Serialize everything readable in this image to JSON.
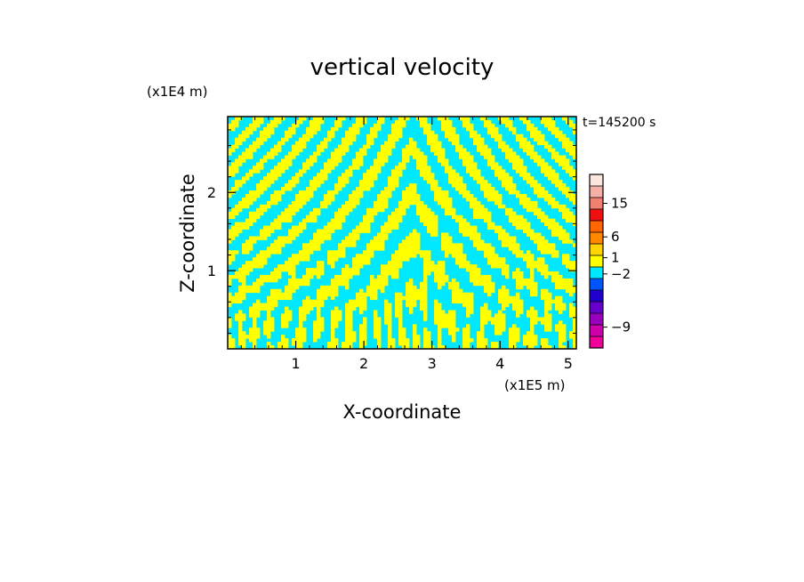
{
  "chart_data": {
    "type": "heatmap",
    "title": "vertical velocity",
    "xlabel": "X-coordinate",
    "ylabel": "Z-coordinate",
    "x_unit": "(x1E5 m)",
    "y_unit": "(x1E4 m)",
    "time_label": "t=145200 s",
    "x_ticks": [
      1,
      2,
      3,
      4,
      5
    ],
    "y_ticks": [
      1,
      2
    ],
    "xlim": [
      0,
      5.12
    ],
    "ylim": [
      0,
      2.97
    ],
    "colors": {
      "positive": "#ffff00",
      "negative": "#00e8ff"
    },
    "colorbar": {
      "levels": [
        {
          "color": "#ee0099"
        },
        {
          "color": "#cc00aa"
        },
        {
          "color": "#9900bb"
        },
        {
          "color": "#6600cc"
        },
        {
          "color": "#2200cc"
        },
        {
          "color": "#0055ff"
        },
        {
          "color": "#00e8ff"
        },
        {
          "color": "#ffff00"
        },
        {
          "color": "#ffd400"
        },
        {
          "color": "#ff8800"
        },
        {
          "color": "#ff6600"
        },
        {
          "color": "#ee1111"
        },
        {
          "color": "#f08070"
        },
        {
          "color": "#f4b0a8"
        },
        {
          "color": "#fbe6e0"
        }
      ],
      "tick_labels": [
        {
          "label": "15",
          "level": 12.5
        },
        {
          "label": "6",
          "level": 9.6
        },
        {
          "label": "1",
          "level": 7.8
        },
        {
          "label": "−2",
          "level": 6.4
        },
        {
          "label": "−9",
          "level": 1.8
        }
      ]
    }
  }
}
